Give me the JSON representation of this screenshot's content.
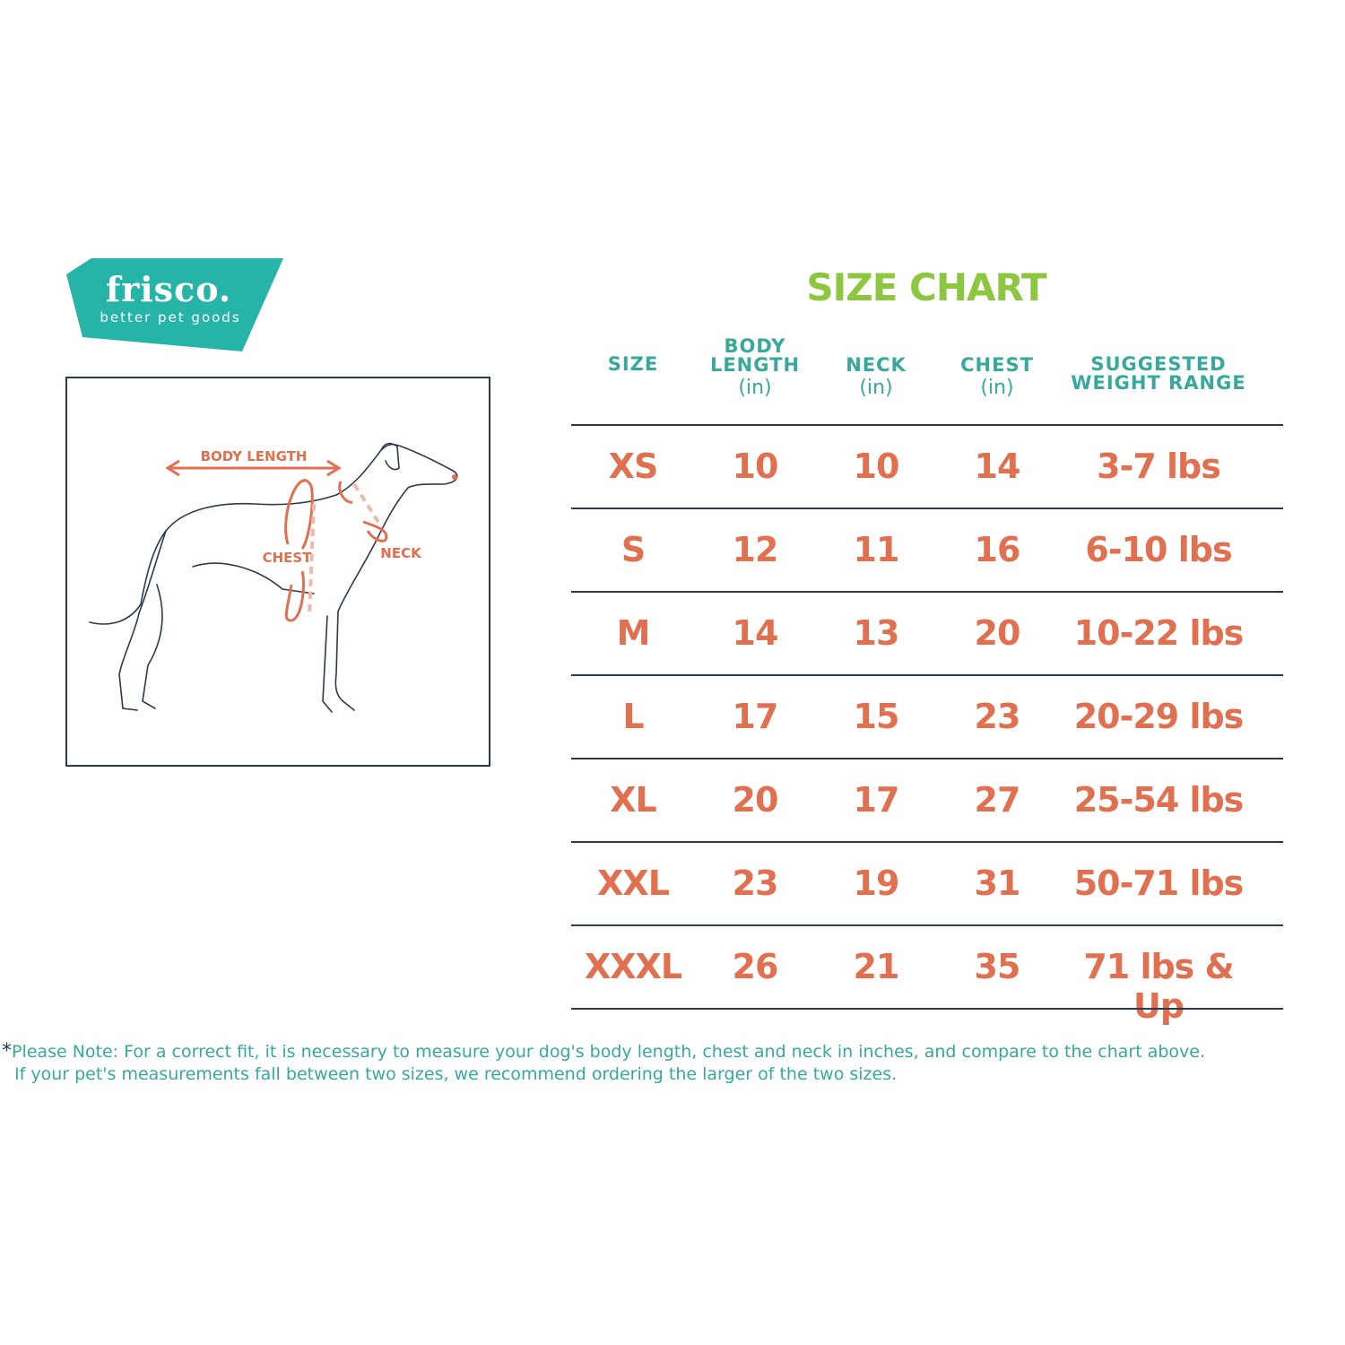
{
  "brand": {
    "name": "frisco.",
    "tagline": "better pet goods",
    "color": "#26b3a8"
  },
  "diagram": {
    "labels": {
      "body_length": "BODY LENGTH",
      "chest": "CHEST",
      "neck": "NECK"
    },
    "accent": "#e07050"
  },
  "title": "SIZE CHART",
  "colors": {
    "title": "#8dc63f",
    "header": "#36a99c",
    "values": "#e07050",
    "rules": "#2b3a4f"
  },
  "table": {
    "headers": [
      {
        "label": "SIZE",
        "unit": ""
      },
      {
        "label": "BODY LENGTH",
        "unit": "(in)"
      },
      {
        "label": "NECK",
        "unit": "(in)"
      },
      {
        "label": "CHEST",
        "unit": "(in)"
      },
      {
        "label": "SUGGESTED WEIGHT RANGE",
        "unit": ""
      }
    ],
    "rows": [
      [
        "XS",
        "10",
        "10",
        "14",
        "3-7 lbs"
      ],
      [
        "S",
        "12",
        "11",
        "16",
        "6-10 lbs"
      ],
      [
        "M",
        "14",
        "13",
        "20",
        "10-22 lbs"
      ],
      [
        "L",
        "17",
        "15",
        "23",
        "20-29 lbs"
      ],
      [
        "XL",
        "20",
        "17",
        "27",
        "25-54 lbs"
      ],
      [
        "XXL",
        "23",
        "19",
        "31",
        "50-71 lbs"
      ],
      [
        "XXXL",
        "26",
        "21",
        "35",
        "71 lbs & Up"
      ]
    ]
  },
  "note": {
    "star": "*",
    "line1": "Please Note: For a correct fit, it is necessary to measure your dog's body length, chest and neck in inches, and compare to the chart above.",
    "line2": "If your pet's measurements fall between two sizes, we recommend ordering the larger of the two sizes."
  }
}
